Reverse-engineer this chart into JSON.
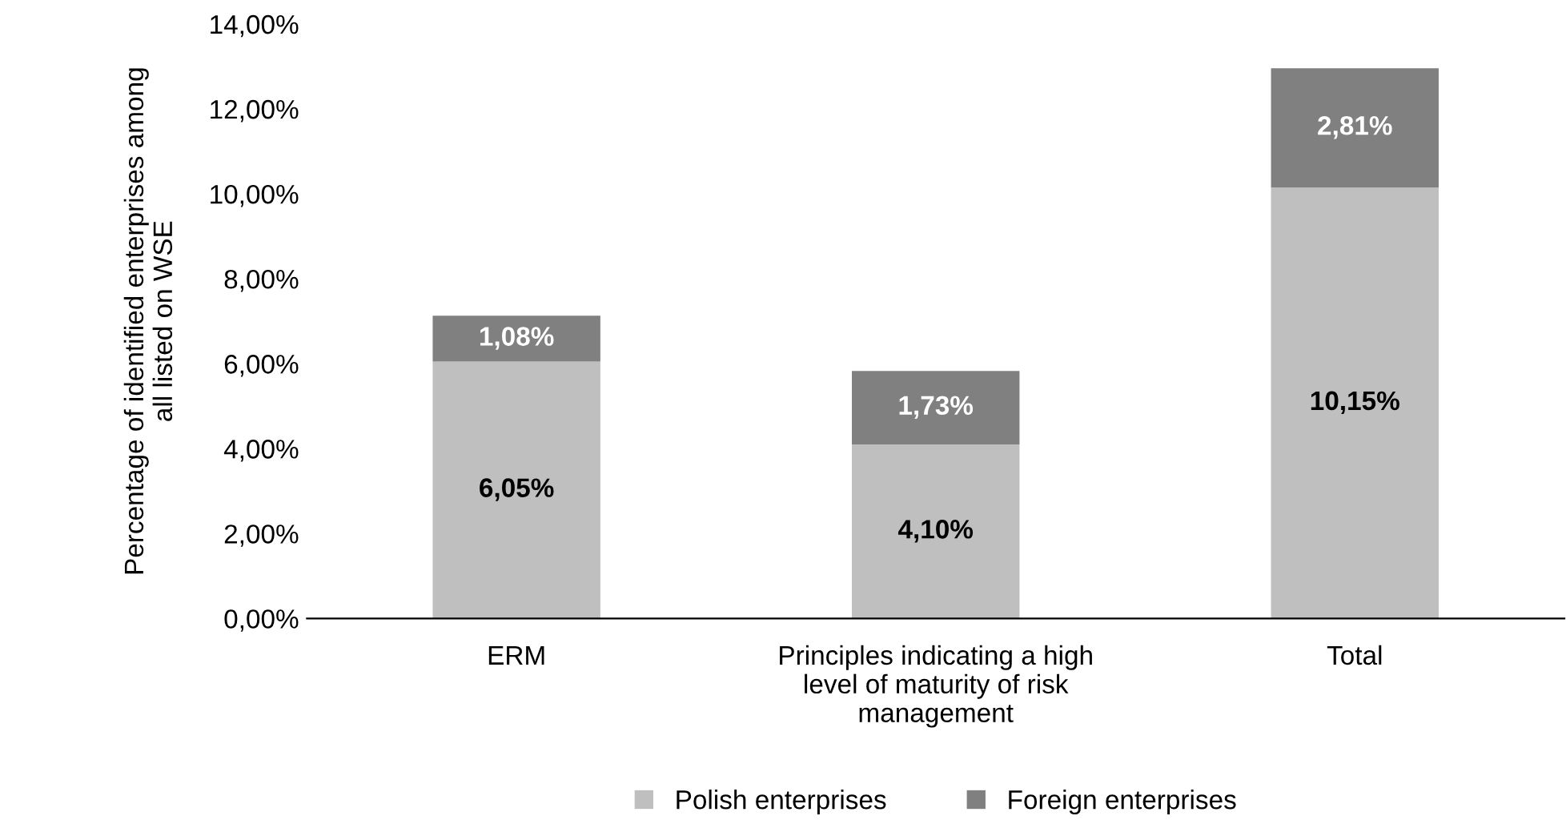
{
  "chart_data": {
    "type": "bar",
    "stacked": true,
    "ylabel": "Percentage of identified enterprises among\nall listed on WSE",
    "categories": [
      "ERM",
      "Principles indicating a high\nlevel of maturity of risk\nmanagement",
      "Total"
    ],
    "series": [
      {
        "name": "Polish enterprises",
        "color": "#bfbfbf",
        "values": [
          6.05,
          4.1,
          10.15
        ],
        "value_labels": [
          "6,05%",
          "4,10%",
          "10,15%"
        ]
      },
      {
        "name": "Foreign enterprises",
        "color": "#808080",
        "values": [
          1.08,
          1.73,
          2.81
        ],
        "value_labels": [
          "1,08%",
          "1,73%",
          "2,81%"
        ]
      }
    ],
    "ylim": [
      0,
      14
    ],
    "yticks": [
      {
        "value": 0,
        "label": "0,00%"
      },
      {
        "value": 2,
        "label": "2,00%"
      },
      {
        "value": 4,
        "label": "4,00%"
      },
      {
        "value": 6,
        "label": "6,00%"
      },
      {
        "value": 8,
        "label": "8,00%"
      },
      {
        "value": 10,
        "label": "10,00%"
      },
      {
        "value": 12,
        "label": "12,00%"
      },
      {
        "value": 14,
        "label": "14,00%"
      }
    ],
    "grid": false,
    "legend": "bottom"
  }
}
